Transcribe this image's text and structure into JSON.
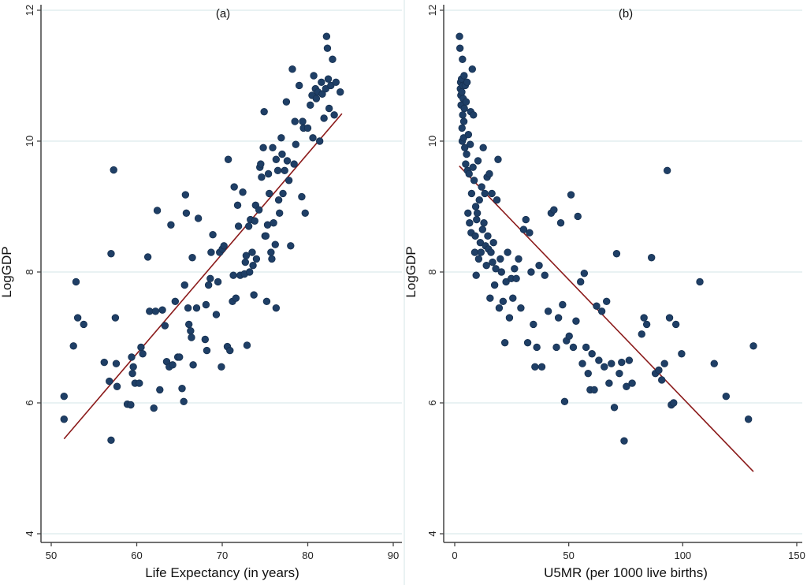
{
  "chart_data": [
    {
      "type": "scatter",
      "title": "(a)",
      "xlabel": "Life Expectancy (in years)",
      "ylabel": "LogGDP",
      "xlim": [
        49,
        91
      ],
      "ylim": [
        3.6,
        12.05
      ],
      "xticks": [
        50,
        60,
        70,
        80,
        90
      ],
      "xtick_labels": [
        "50",
        "60",
        "70",
        "80",
        "90"
      ],
      "yticks": [
        4,
        6,
        8,
        10,
        12
      ],
      "ytick_labels": [
        "4",
        "6",
        "8",
        "10",
        "12"
      ],
      "grid": true,
      "point_color": "#1f3f66",
      "line_color": "#8b1a1a",
      "fit_line": {
        "x": [
          51.5,
          84
        ],
        "y": [
          5.45,
          10.42
        ]
      },
      "points": [
        [
          51.5,
          6.1
        ],
        [
          51.5,
          5.75
        ],
        [
          52.6,
          6.87
        ],
        [
          52.9,
          7.85
        ],
        [
          53.1,
          7.3
        ],
        [
          53.8,
          7.2
        ],
        [
          56.2,
          6.62
        ],
        [
          56.8,
          6.33
        ],
        [
          57.0,
          5.43
        ],
        [
          57.0,
          8.28
        ],
        [
          57.3,
          9.56
        ],
        [
          57.5,
          7.3
        ],
        [
          57.6,
          6.6
        ],
        [
          57.7,
          6.25
        ],
        [
          58.9,
          5.98
        ],
        [
          59.3,
          5.97
        ],
        [
          59.6,
          6.55
        ],
        [
          59.4,
          6.7
        ],
        [
          59.5,
          6.45
        ],
        [
          59.8,
          6.3
        ],
        [
          60.3,
          6.3
        ],
        [
          60.5,
          6.85
        ],
        [
          60.7,
          6.75
        ],
        [
          61.3,
          8.23
        ],
        [
          61.5,
          7.4
        ],
        [
          62.2,
          7.4
        ],
        [
          62.4,
          8.94
        ],
        [
          62.0,
          5.92
        ],
        [
          62.7,
          6.2
        ],
        [
          63.0,
          7.42
        ],
        [
          63.3,
          7.18
        ],
        [
          63.5,
          6.63
        ],
        [
          63.8,
          6.55
        ],
        [
          64.0,
          8.72
        ],
        [
          64.2,
          6.58
        ],
        [
          64.5,
          7.55
        ],
        [
          64.8,
          6.7
        ],
        [
          65.0,
          6.7
        ],
        [
          65.3,
          6.22
        ],
        [
          65.5,
          6.02
        ],
        [
          65.6,
          7.8
        ],
        [
          65.7,
          9.18
        ],
        [
          65.8,
          8.9
        ],
        [
          66.0,
          7.45
        ],
        [
          66.1,
          7.2
        ],
        [
          66.3,
          7.1
        ],
        [
          66.4,
          7.0
        ],
        [
          66.5,
          8.22
        ],
        [
          66.6,
          6.58
        ],
        [
          67.0,
          7.45
        ],
        [
          67.2,
          8.82
        ],
        [
          68.0,
          6.97
        ],
        [
          68.1,
          7.5
        ],
        [
          68.2,
          6.8
        ],
        [
          68.4,
          7.8
        ],
        [
          68.6,
          7.9
        ],
        [
          68.7,
          8.3
        ],
        [
          68.9,
          8.57
        ],
        [
          69.3,
          7.35
        ],
        [
          69.5,
          7.85
        ],
        [
          69.7,
          8.3
        ],
        [
          69.9,
          6.55
        ],
        [
          70.0,
          8.35
        ],
        [
          70.2,
          8.4
        ],
        [
          70.6,
          6.86
        ],
        [
          70.7,
          9.72
        ],
        [
          70.9,
          6.8
        ],
        [
          71.2,
          7.55
        ],
        [
          71.3,
          7.95
        ],
        [
          71.4,
          9.3
        ],
        [
          71.6,
          7.6
        ],
        [
          71.8,
          9.02
        ],
        [
          71.9,
          8.7
        ],
        [
          72.1,
          7.95
        ],
        [
          72.4,
          9.22
        ],
        [
          72.6,
          7.97
        ],
        [
          72.7,
          8.15
        ],
        [
          72.8,
          8.25
        ],
        [
          72.9,
          6.88
        ],
        [
          73.1,
          8.7
        ],
        [
          73.2,
          8.0
        ],
        [
          73.3,
          8.8
        ],
        [
          73.5,
          8.3
        ],
        [
          73.6,
          8.1
        ],
        [
          73.7,
          7.65
        ],
        [
          73.8,
          8.78
        ],
        [
          73.9,
          9.02
        ],
        [
          74.0,
          8.2
        ],
        [
          74.3,
          8.95
        ],
        [
          74.4,
          9.6
        ],
        [
          74.5,
          9.65
        ],
        [
          74.6,
          9.45
        ],
        [
          74.8,
          9.9
        ],
        [
          74.9,
          10.45
        ],
        [
          75.0,
          8.55
        ],
        [
          75.1,
          8.55
        ],
        [
          75.2,
          7.55
        ],
        [
          75.3,
          8.72
        ],
        [
          75.4,
          9.5
        ],
        [
          75.5,
          9.2
        ],
        [
          75.7,
          8.3
        ],
        [
          75.8,
          8.2
        ],
        [
          75.9,
          9.9
        ],
        [
          76.0,
          8.75
        ],
        [
          76.2,
          8.42
        ],
        [
          76.3,
          7.45
        ],
        [
          76.3,
          9.72
        ],
        [
          76.5,
          9.55
        ],
        [
          76.6,
          9.1
        ],
        [
          76.7,
          8.9
        ],
        [
          76.9,
          10.05
        ],
        [
          77.0,
          9.8
        ],
        [
          77.1,
          9.2
        ],
        [
          77.3,
          9.55
        ],
        [
          77.5,
          10.6
        ],
        [
          77.6,
          9.7
        ],
        [
          77.8,
          9.4
        ],
        [
          78.0,
          8.4
        ],
        [
          78.2,
          11.1
        ],
        [
          78.4,
          9.65
        ],
        [
          78.5,
          10.3
        ],
        [
          78.6,
          9.95
        ],
        [
          79.0,
          10.85
        ],
        [
          79.3,
          9.15
        ],
        [
          79.4,
          10.3
        ],
        [
          79.5,
          10.2
        ],
        [
          79.7,
          8.9
        ],
        [
          80.0,
          10.2
        ],
        [
          80.3,
          10.55
        ],
        [
          80.5,
          10.7
        ],
        [
          80.6,
          10.05
        ],
        [
          80.7,
          11.0
        ],
        [
          80.9,
          10.8
        ],
        [
          81.0,
          10.65
        ],
        [
          81.2,
          10.75
        ],
        [
          81.4,
          10.0
        ],
        [
          81.6,
          10.9
        ],
        [
          81.7,
          10.72
        ],
        [
          81.9,
          10.35
        ],
        [
          82.1,
          10.8
        ],
        [
          82.2,
          11.6
        ],
        [
          82.3,
          11.42
        ],
        [
          82.4,
          10.95
        ],
        [
          82.5,
          10.5
        ],
        [
          82.7,
          10.85
        ],
        [
          82.9,
          11.25
        ],
        [
          83.1,
          10.4
        ],
        [
          83.3,
          10.9
        ],
        [
          83.8,
          10.75
        ]
      ]
    },
    {
      "type": "scatter",
      "title": "(b)",
      "xlabel": "U5MR (per 1000 live births)",
      "ylabel": "LogGDP",
      "xlim": [
        -5,
        153
      ],
      "ylim": [
        3.6,
        12.05
      ],
      "xticks": [
        0,
        50,
        100,
        150
      ],
      "xtick_labels": [
        "0",
        "50",
        "100",
        "150"
      ],
      "yticks": [
        4,
        6,
        8,
        10,
        12
      ],
      "ytick_labels": [
        "4",
        "6",
        "8",
        "10",
        "12"
      ],
      "grid": true,
      "point_color": "#1f3f66",
      "line_color": "#8b1a1a",
      "fit_line": {
        "x": [
          2,
          131
        ],
        "y": [
          9.62,
          4.95
        ]
      },
      "points": [
        [
          2.1,
          11.6
        ],
        [
          2.3,
          11.42
        ],
        [
          2.5,
          10.8
        ],
        [
          2.6,
          10.9
        ],
        [
          2.7,
          10.7
        ],
        [
          2.8,
          10.55
        ],
        [
          3.0,
          10.95
        ],
        [
          3.1,
          10.75
        ],
        [
          3.2,
          10.2
        ],
        [
          3.3,
          10.0
        ],
        [
          3.4,
          11.25
        ],
        [
          3.5,
          10.4
        ],
        [
          3.6,
          10.85
        ],
        [
          3.7,
          10.65
        ],
        [
          3.9,
          10.05
        ],
        [
          4.0,
          10.3
        ],
        [
          4.1,
          11.0
        ],
        [
          4.2,
          10.5
        ],
        [
          4.4,
          9.9
        ],
        [
          4.6,
          10.85
        ],
        [
          4.8,
          9.65
        ],
        [
          5.0,
          10.6
        ],
        [
          5.2,
          9.8
        ],
        [
          5.4,
          10.9
        ],
        [
          5.6,
          9.55
        ],
        [
          5.8,
          8.9
        ],
        [
          6.0,
          10.1
        ],
        [
          6.3,
          9.5
        ],
        [
          6.5,
          8.75
        ],
        [
          6.8,
          9.95
        ],
        [
          7.0,
          10.45
        ],
        [
          7.2,
          8.6
        ],
        [
          7.4,
          9.2
        ],
        [
          7.7,
          11.1
        ],
        [
          8.0,
          9.6
        ],
        [
          8.2,
          10.4
        ],
        [
          8.5,
          9.4
        ],
        [
          8.8,
          8.3
        ],
        [
          9.0,
          8.55
        ],
        [
          9.2,
          9.0
        ],
        [
          9.4,
          7.95
        ],
        [
          9.6,
          8.8
        ],
        [
          9.9,
          8.9
        ],
        [
          10.2,
          9.7
        ],
        [
          10.5,
          8.2
        ],
        [
          10.8,
          9.1
        ],
        [
          11.2,
          8.45
        ],
        [
          11.5,
          8.3
        ],
        [
          11.8,
          9.3
        ],
        [
          12.2,
          8.65
        ],
        [
          12.5,
          9.9
        ],
        [
          12.8,
          8.75
        ],
        [
          13.2,
          9.2
        ],
        [
          13.5,
          8.4
        ],
        [
          13.9,
          8.1
        ],
        [
          14.2,
          9.45
        ],
        [
          14.5,
          8.55
        ],
        [
          14.8,
          8.35
        ],
        [
          15.2,
          9.5
        ],
        [
          15.5,
          7.6
        ],
        [
          15.9,
          8.3
        ],
        [
          16.3,
          9.2
        ],
        [
          16.6,
          8.15
        ],
        [
          17.0,
          8.45
        ],
        [
          17.5,
          7.8
        ],
        [
          18.0,
          8.05
        ],
        [
          18.5,
          9.1
        ],
        [
          19.0,
          9.72
        ],
        [
          19.5,
          7.45
        ],
        [
          20.0,
          8.2
        ],
        [
          20.5,
          8.0
        ],
        [
          21.2,
          7.55
        ],
        [
          22.0,
          6.92
        ],
        [
          22.5,
          7.85
        ],
        [
          23.2,
          8.3
        ],
        [
          24.0,
          7.3
        ],
        [
          24.8,
          7.9
        ],
        [
          25.5,
          7.6
        ],
        [
          26.2,
          8.05
        ],
        [
          27.0,
          7.9
        ],
        [
          28.0,
          8.2
        ],
        [
          29.0,
          7.45
        ],
        [
          30.2,
          8.65
        ],
        [
          31.2,
          8.8
        ],
        [
          32.0,
          6.92
        ],
        [
          32.8,
          8.6
        ],
        [
          33.5,
          8.0
        ],
        [
          34.5,
          7.2
        ],
        [
          35.2,
          6.55
        ],
        [
          36.0,
          6.85
        ],
        [
          37.0,
          8.1
        ],
        [
          38.2,
          6.55
        ],
        [
          39.5,
          7.95
        ],
        [
          41.0,
          7.4
        ],
        [
          42.3,
          8.9
        ],
        [
          43.5,
          8.95
        ],
        [
          44.6,
          6.85
        ],
        [
          45.5,
          7.3
        ],
        [
          46.5,
          8.75
        ],
        [
          47.3,
          7.5
        ],
        [
          48.2,
          6.02
        ],
        [
          49.0,
          6.95
        ],
        [
          50.2,
          7.02
        ],
        [
          51.0,
          9.18
        ],
        [
          52.0,
          6.85
        ],
        [
          53.2,
          7.25
        ],
        [
          54.0,
          8.85
        ],
        [
          55.2,
          7.85
        ],
        [
          56.0,
          6.6
        ],
        [
          56.8,
          7.98
        ],
        [
          57.6,
          6.85
        ],
        [
          58.5,
          6.45
        ],
        [
          59.4,
          6.2
        ],
        [
          60.2,
          6.75
        ],
        [
          61.2,
          6.2
        ],
        [
          62.2,
          7.48
        ],
        [
          63.2,
          6.65
        ],
        [
          64.5,
          7.4
        ],
        [
          65.6,
          6.55
        ],
        [
          66.6,
          7.55
        ],
        [
          67.7,
          6.3
        ],
        [
          68.7,
          6.6
        ],
        [
          70.0,
          5.93
        ],
        [
          71.0,
          8.28
        ],
        [
          72.2,
          6.45
        ],
        [
          73.2,
          6.62
        ],
        [
          74.3,
          5.42
        ],
        [
          75.3,
          6.25
        ],
        [
          76.5,
          6.65
        ],
        [
          77.8,
          6.3
        ],
        [
          82.0,
          7.05
        ],
        [
          83.0,
          7.3
        ],
        [
          84.2,
          7.2
        ],
        [
          86.3,
          8.22
        ],
        [
          88.0,
          6.45
        ],
        [
          89.5,
          6.5
        ],
        [
          90.8,
          6.35
        ],
        [
          92.0,
          6.6
        ],
        [
          93.2,
          9.55
        ],
        [
          94.2,
          7.3
        ],
        [
          95.0,
          5.97
        ],
        [
          96.0,
          6.0
        ],
        [
          97.0,
          7.2
        ],
        [
          99.5,
          6.75
        ],
        [
          107.5,
          7.85
        ],
        [
          113.8,
          6.6
        ],
        [
          119.0,
          6.1
        ],
        [
          128.8,
          5.75
        ],
        [
          131.0,
          6.87
        ]
      ]
    }
  ]
}
